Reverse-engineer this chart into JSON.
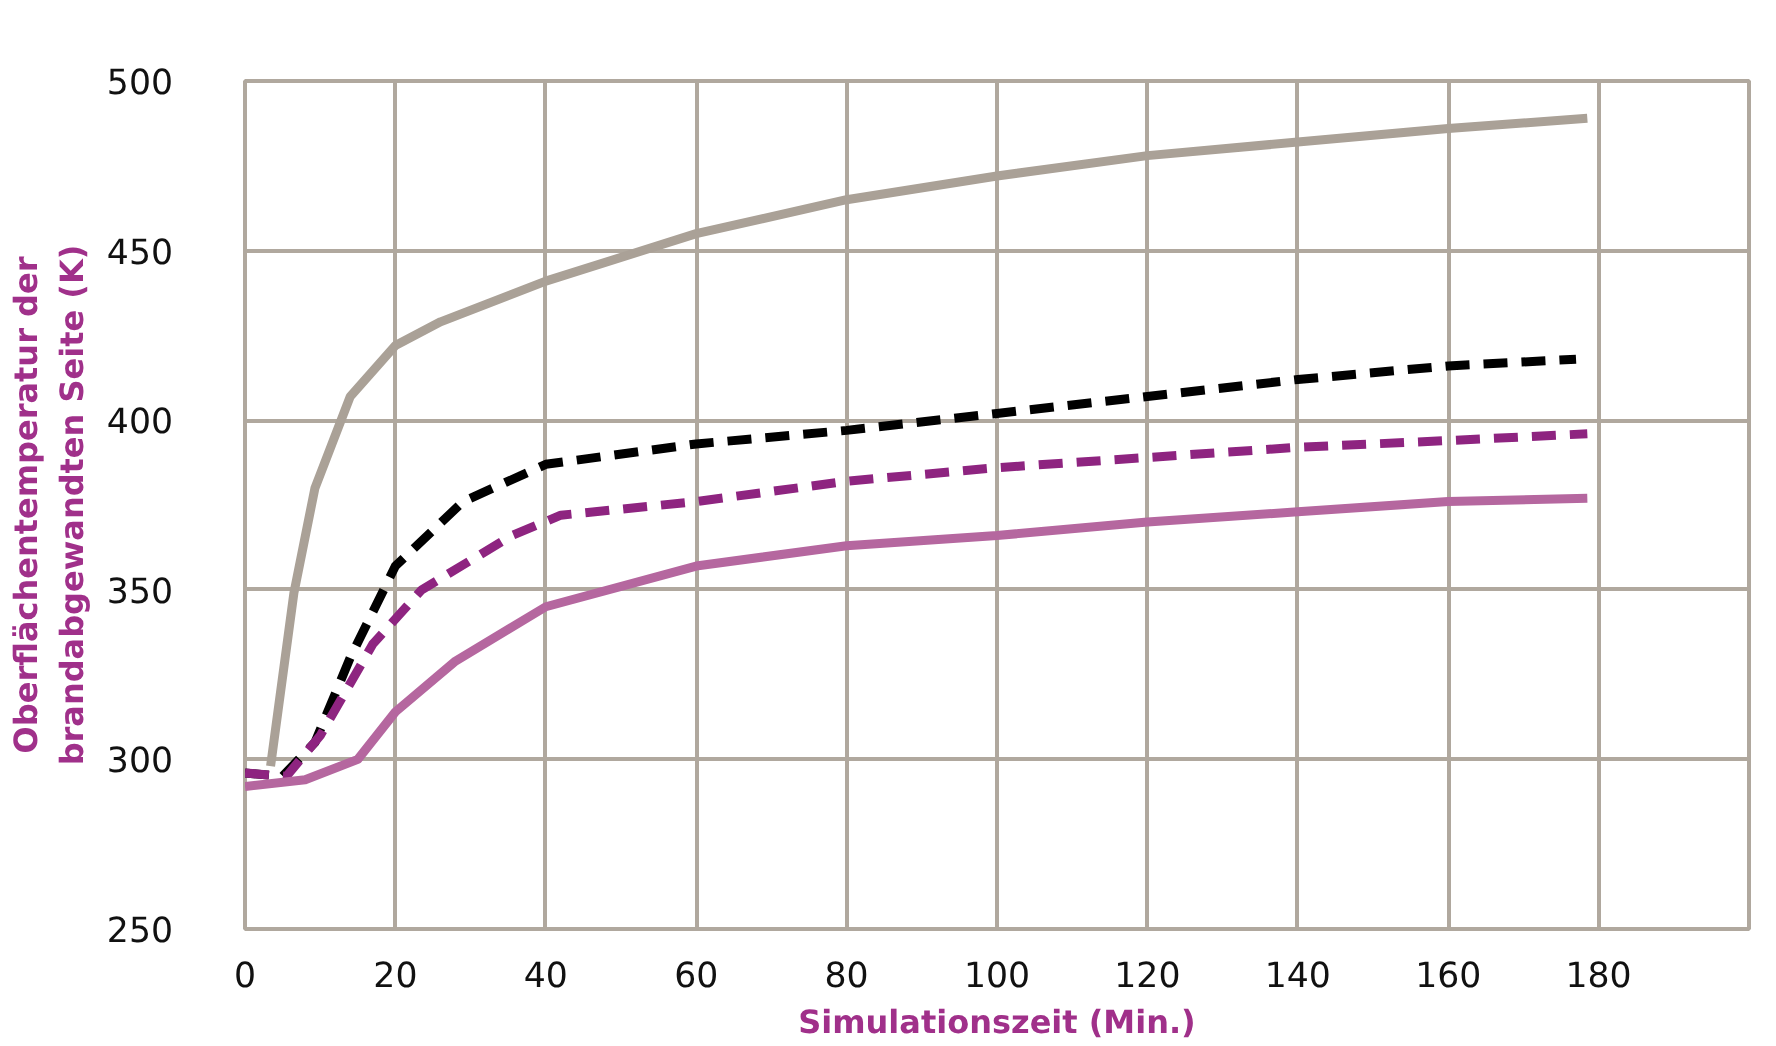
{
  "chart_data": {
    "type": "line",
    "xlabel": "Simulationszeit (Min.)",
    "ylabel": "Oberflächentemperatur der\nbrandabgewandten Seite (K)",
    "xlim": [
      0,
      200
    ],
    "ylim": [
      250,
      500
    ],
    "xticks": [
      0,
      20,
      40,
      60,
      80,
      100,
      120,
      140,
      160,
      180
    ],
    "yticks": [
      250,
      300,
      350,
      400,
      450,
      500
    ],
    "grid": true,
    "marker": "none",
    "series": [
      {
        "color": "#aaa197",
        "line_style": "solid",
        "x": [
          3.4,
          6.5,
          9.3,
          14,
          20,
          26,
          40,
          60,
          80,
          100,
          120,
          140,
          160,
          178.5
        ],
        "values": [
          298,
          349,
          380,
          407,
          422,
          429,
          441,
          455,
          465,
          472,
          478,
          482,
          486,
          489
        ]
      },
      {
        "color": "#000000",
        "line_style": "dashed",
        "x": [
          0,
          5,
          9.3,
          14,
          20,
          29,
          40,
          60,
          80,
          100,
          120,
          140,
          160,
          177
        ],
        "values": [
          296,
          295,
          305,
          330,
          357,
          376,
          387,
          393,
          397,
          402,
          407,
          412,
          416,
          418
        ]
      },
      {
        "color": "#8e2480",
        "line_style": "dashed",
        "x": [
          0,
          5.5,
          10,
          17,
          23.5,
          35.5,
          42,
          60,
          80,
          100,
          120,
          140,
          160,
          178.5
        ],
        "values": [
          296,
          295,
          307,
          334,
          350,
          366,
          372,
          376,
          382,
          386,
          389,
          392,
          394,
          396
        ]
      },
      {
        "color": "#b5679f",
        "line_style": "solid",
        "x": [
          0,
          8,
          15,
          20,
          28,
          40,
          60,
          80,
          100,
          120,
          140,
          160,
          178.5
        ],
        "values": [
          292,
          294,
          300,
          314,
          329,
          345,
          357,
          363,
          366,
          370,
          373,
          376,
          377
        ]
      }
    ]
  }
}
